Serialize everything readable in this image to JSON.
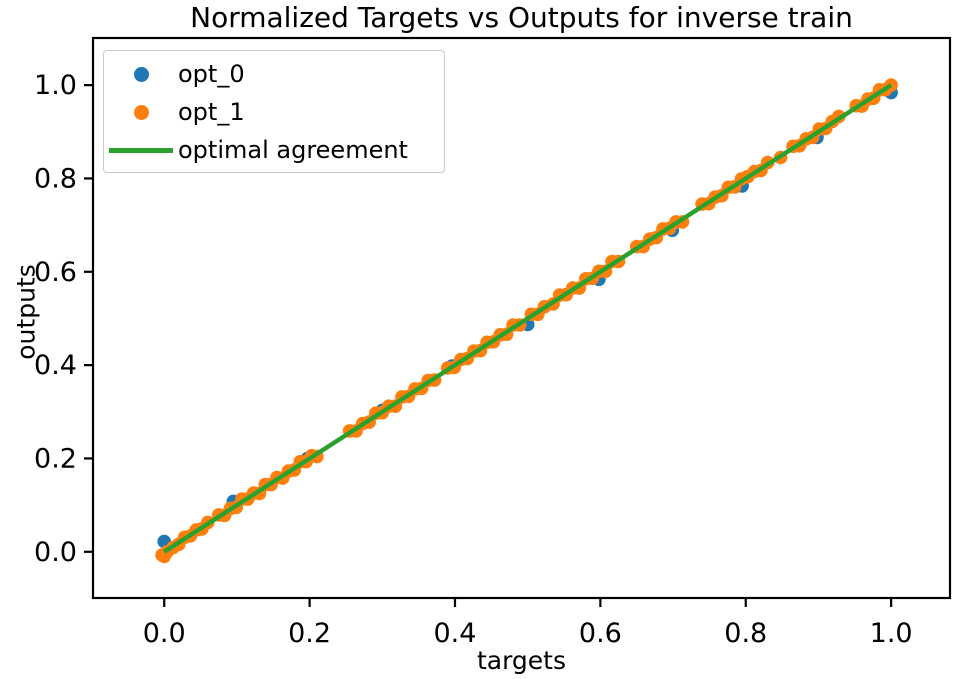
{
  "chart_data": {
    "type": "scatter",
    "title": "Normalized Targets vs Outputs for inverse train",
    "xlabel": "targets",
    "ylabel": "outputs",
    "xlim": [
      -0.098,
      1.081
    ],
    "ylim": [
      -0.099,
      1.101
    ],
    "xticks": [
      0.0,
      0.2,
      0.4,
      0.6,
      0.8,
      1.0
    ],
    "yticks": [
      0.0,
      0.2,
      0.4,
      0.6,
      0.8,
      1.0
    ],
    "grid": false,
    "legend_position": "upper-left",
    "axis_color": "#000000",
    "series": [
      {
        "name": "opt_0",
        "color": "#1f77b4",
        "marker": "circle",
        "points": [
          [
            0.0,
            0.022
          ],
          [
            0.095,
            0.108
          ],
          [
            0.197,
            0.2
          ],
          [
            0.3,
            0.303
          ],
          [
            0.396,
            0.398
          ],
          [
            0.5,
            0.487
          ],
          [
            0.598,
            0.584
          ],
          [
            0.699,
            0.689
          ],
          [
            0.795,
            0.784
          ],
          [
            0.898,
            0.888
          ],
          [
            1.0,
            0.984
          ]
        ]
      },
      {
        "name": "opt_1",
        "color": "#ff7f0e",
        "marker": "circle",
        "points": [
          [
            0.0,
            -0.01
          ],
          [
            -0.003,
            -0.007
          ],
          [
            0.004,
            0.0
          ],
          [
            0.012,
            0.009
          ],
          [
            0.02,
            0.016
          ],
          [
            0.028,
            0.031
          ],
          [
            0.036,
            0.034
          ],
          [
            0.044,
            0.047
          ],
          [
            0.052,
            0.049
          ],
          [
            0.06,
            0.063
          ],
          [
            0.075,
            0.079
          ],
          [
            0.083,
            0.078
          ],
          [
            0.091,
            0.093
          ],
          [
            0.099,
            0.095
          ],
          [
            0.107,
            0.113
          ],
          [
            0.115,
            0.113
          ],
          [
            0.123,
            0.126
          ],
          [
            0.131,
            0.125
          ],
          [
            0.139,
            0.144
          ],
          [
            0.147,
            0.144
          ],
          [
            0.155,
            0.159
          ],
          [
            0.163,
            0.158
          ],
          [
            0.171,
            0.173
          ],
          [
            0.179,
            0.175
          ],
          [
            0.187,
            0.193
          ],
          [
            0.195,
            0.193
          ],
          [
            0.203,
            0.206
          ],
          [
            0.21,
            0.204
          ],
          [
            0.255,
            0.259
          ],
          [
            0.264,
            0.259
          ],
          [
            0.273,
            0.275
          ],
          [
            0.282,
            0.278
          ],
          [
            0.291,
            0.297
          ],
          [
            0.3,
            0.298
          ],
          [
            0.309,
            0.312
          ],
          [
            0.318,
            0.312
          ],
          [
            0.327,
            0.332
          ],
          [
            0.336,
            0.333
          ],
          [
            0.345,
            0.349
          ],
          [
            0.354,
            0.35
          ],
          [
            0.363,
            0.367
          ],
          [
            0.372,
            0.368
          ],
          [
            0.39,
            0.394
          ],
          [
            0.399,
            0.395
          ],
          [
            0.408,
            0.412
          ],
          [
            0.417,
            0.414
          ],
          [
            0.426,
            0.43
          ],
          [
            0.435,
            0.431
          ],
          [
            0.444,
            0.449
          ],
          [
            0.453,
            0.45
          ],
          [
            0.462,
            0.465
          ],
          [
            0.471,
            0.466
          ],
          [
            0.48,
            0.486
          ],
          [
            0.489,
            0.486
          ],
          [
            0.505,
            0.509
          ],
          [
            0.514,
            0.509
          ],
          [
            0.523,
            0.525
          ],
          [
            0.535,
            0.531
          ],
          [
            0.544,
            0.55
          ],
          [
            0.553,
            0.551
          ],
          [
            0.562,
            0.565
          ],
          [
            0.571,
            0.565
          ],
          [
            0.58,
            0.585
          ],
          [
            0.589,
            0.586
          ],
          [
            0.598,
            0.601
          ],
          [
            0.607,
            0.601
          ],
          [
            0.616,
            0.622
          ],
          [
            0.625,
            0.622
          ],
          [
            0.65,
            0.654
          ],
          [
            0.659,
            0.654
          ],
          [
            0.668,
            0.67
          ],
          [
            0.677,
            0.673
          ],
          [
            0.686,
            0.692
          ],
          [
            0.695,
            0.693
          ],
          [
            0.704,
            0.707
          ],
          [
            0.713,
            0.707
          ],
          [
            0.74,
            0.745
          ],
          [
            0.749,
            0.746
          ],
          [
            0.758,
            0.76
          ],
          [
            0.767,
            0.763
          ],
          [
            0.776,
            0.781
          ],
          [
            0.785,
            0.782
          ],
          [
            0.794,
            0.799
          ],
          [
            0.803,
            0.804
          ],
          [
            0.812,
            0.815
          ],
          [
            0.821,
            0.817
          ],
          [
            0.83,
            0.834
          ],
          [
            0.848,
            0.845
          ],
          [
            0.865,
            0.869
          ],
          [
            0.874,
            0.87
          ],
          [
            0.883,
            0.885
          ],
          [
            0.892,
            0.888
          ],
          [
            0.901,
            0.906
          ],
          [
            0.91,
            0.907
          ],
          [
            0.919,
            0.922
          ],
          [
            0.928,
            0.933
          ],
          [
            0.952,
            0.956
          ],
          [
            0.96,
            0.955
          ],
          [
            0.968,
            0.97
          ],
          [
            0.976,
            0.972
          ],
          [
            0.984,
            0.99
          ],
          [
            0.992,
            0.99
          ],
          [
            1.0,
            1.0
          ]
        ]
      }
    ],
    "line": {
      "name": "optimal agreement",
      "color": "#2ca02c",
      "points": [
        [
          0,
          0
        ],
        [
          1,
          1
        ]
      ]
    }
  }
}
